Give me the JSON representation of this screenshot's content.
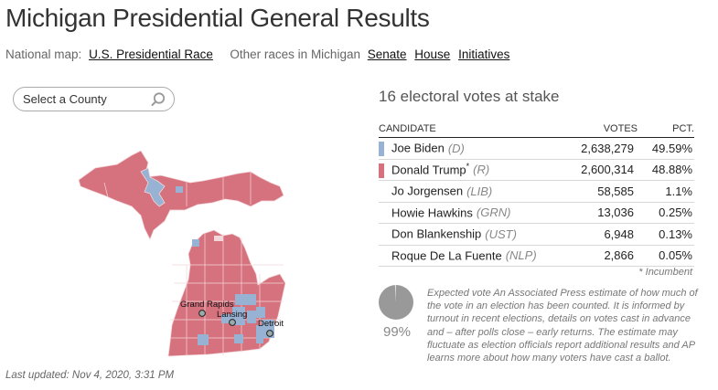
{
  "header": {
    "title": "Michigan Presidential General Results"
  },
  "nav": {
    "national_label": "National map:",
    "national_link": "U.S. Presidential Race",
    "other_label": "Other races in Michigan",
    "links": [
      "Senate",
      "House",
      "Initiatives"
    ]
  },
  "search": {
    "placeholder": "Select a County",
    "icon": "search-icon"
  },
  "map": {
    "state": "Michigan",
    "cities": [
      "Grand Rapids",
      "Lansing",
      "Detroit"
    ],
    "colors": {
      "dem": "#97b2d2",
      "rep": "#d6727e",
      "border": "#f3d6da"
    }
  },
  "summary": {
    "electoral_votes": "16 electoral votes at stake"
  },
  "table": {
    "headers": {
      "candidate": "CANDIDATE",
      "votes": "VOTES",
      "pct": "PCT."
    },
    "rows": [
      {
        "name": "Joe Biden",
        "party": "(D)",
        "star": "",
        "votes": "2,638,279",
        "pct": "49.59%",
        "color": "#97b2d2"
      },
      {
        "name": "Donald Trump",
        "party": "(R)",
        "star": "*",
        "votes": "2,600,314",
        "pct": "48.88%",
        "color": "#d6727e"
      },
      {
        "name": "Jo Jorgensen",
        "party": "(LIB)",
        "star": "",
        "votes": "58,585",
        "pct": "1.1%",
        "color": ""
      },
      {
        "name": "Howie Hawkins",
        "party": "(GRN)",
        "star": "",
        "votes": "13,036",
        "pct": "0.25%",
        "color": ""
      },
      {
        "name": "Don Blankenship",
        "party": "(UST)",
        "star": "",
        "votes": "6,948",
        "pct": "0.13%",
        "color": ""
      },
      {
        "name": "Roque De La Fuente",
        "party": "(NLP)",
        "star": "",
        "votes": "2,866",
        "pct": "0.05%",
        "color": ""
      }
    ],
    "incumbent_note": "* Incumbent"
  },
  "expected_vote": {
    "percent": "99%",
    "fraction": 0.99,
    "text": "Expected vote An Associated Press estimate of how much of the vote in an election has been counted. It is informed by turnout in recent elections, details on votes cast in advance and – after polls close – early returns. The estimate may fluctuate as election officials report additional results and AP learns more about how many voters have cast a ballot."
  },
  "footer": {
    "last_updated": "Last updated: Nov 4, 2020, 3:31 PM"
  }
}
